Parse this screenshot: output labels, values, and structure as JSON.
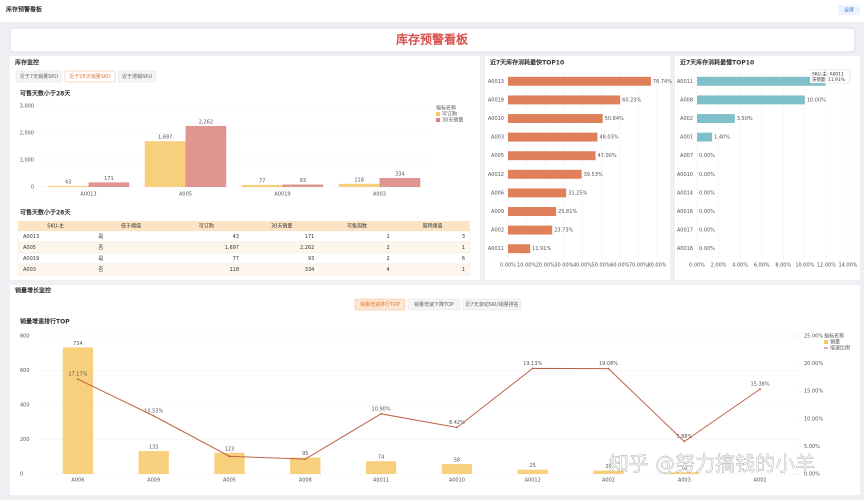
{
  "header": {
    "title": "库存预警看板",
    "button": "全屏"
  },
  "banner": {
    "title": "库存预警看板"
  },
  "inventory_panel": {
    "title": "库存监控",
    "tabs": [
      "近于7天销量SKU",
      "近于28天销量SKU",
      "近于滞销SKU"
    ],
    "active_tab": 1,
    "table_title": "可售天数小于28天",
    "table": {
      "columns": [
        "SKU-主",
        "低于阈值",
        "可订购",
        "30天销量",
        "可售周数",
        "周转阈值"
      ],
      "rows": [
        [
          "A0013",
          "是",
          "43",
          "171",
          "1",
          "3"
        ],
        [
          "A005",
          "否",
          "1,697",
          "2,262",
          "2",
          "1"
        ],
        [
          "A0019",
          "是",
          "77",
          "93",
          "2",
          "6"
        ],
        [
          "A003",
          "否",
          "118",
          "334",
          "4",
          "1"
        ]
      ]
    }
  },
  "growth_panel": {
    "title": "销量增长监控",
    "tabs": [
      "销量增速排行TOP",
      "销量增速下降TOP",
      "近7天滚动SKU销量排名"
    ],
    "active_tab": 0
  },
  "watermark": "知乎 @努力搞钱的小羊",
  "chart_data": [
    {
      "type": "bar",
      "subtitle": "可售天数小于28天",
      "categories": [
        "A0013",
        "A005",
        "A0019",
        "A003"
      ],
      "series": [
        {
          "name": "可订购",
          "color": "#f6c766",
          "values": [
            43,
            1697,
            77,
            118
          ],
          "value_labels": [
            "43",
            "1,697",
            "77",
            "118"
          ]
        },
        {
          "name": "30天销量",
          "color": "#d9827c",
          "values": [
            171,
            2262,
            93,
            334
          ],
          "value_labels": [
            "171",
            "2,262",
            "93",
            "334"
          ]
        }
      ],
      "ylim": [
        0,
        3000
      ],
      "yticks": [
        0,
        {
          "value": 1000,
          "label": "1,000"
        },
        {
          "value": 2000,
          "label": "2,000"
        },
        {
          "value": 3000,
          "label": "3,000"
        }
      ],
      "grid": true,
      "legend_title": "指标名称",
      "legend": "right"
    },
    {
      "type": "hbar",
      "title": "近7天库存消耗最快TOP10",
      "color": "#e0805a",
      "categories": [
        "A0013",
        "A0019",
        "A0010",
        "A003",
        "A005",
        "A0012",
        "A006",
        "A009",
        "A002",
        "A0011"
      ],
      "values": [
        76.74,
        60.23,
        50.84,
        48.03,
        47.0,
        39.53,
        31.25,
        25.81,
        23.73,
        11.91
      ],
      "value_labels": [
        "76.74%",
        "60.23%",
        "50.84%",
        "48.03%",
        "47.00%",
        "39.53%",
        "31.25%",
        "25.81%",
        "23.73%",
        "11.91%"
      ],
      "xlim": [
        0,
        80
      ],
      "xticks": [
        {
          "value": 0,
          "label": "0.00%"
        },
        {
          "value": 10,
          "label": "10.00%"
        },
        {
          "value": 20,
          "label": "20.00%"
        },
        {
          "value": 30,
          "label": "30.00%"
        },
        {
          "value": 40,
          "label": "40.00%"
        },
        {
          "value": 50,
          "label": "50.00%"
        },
        {
          "value": 60,
          "label": "60.00%"
        },
        {
          "value": 70,
          "label": "70.00%"
        },
        {
          "value": 80,
          "label": "80.00%"
        }
      ]
    },
    {
      "type": "hbar",
      "title": "近7天库存消耗最慢TOP10",
      "color": "#7fbfca",
      "categories": [
        "A0011",
        "A008",
        "A002",
        "A001",
        "A007",
        "A0010",
        "A0014",
        "A0016",
        "A0017",
        "A0018"
      ],
      "values": [
        11.91,
        10.0,
        3.5,
        1.4,
        0,
        0,
        0,
        0,
        0,
        0
      ],
      "value_labels": [
        "11.91%",
        "10.00%",
        "3.50%",
        "1.40%",
        "0.00%",
        "0.00%",
        "0.00%",
        "0.00%",
        "0.00%",
        "0.00%"
      ],
      "xlim": [
        0,
        14
      ],
      "xticks": [
        {
          "value": 0,
          "label": "0.00%"
        },
        {
          "value": 2,
          "label": "2.00%"
        },
        {
          "value": 4,
          "label": "4.00%"
        },
        {
          "value": 6,
          "label": "6.00%"
        },
        {
          "value": 8,
          "label": "8.00%"
        },
        {
          "value": 10,
          "label": "10.00%"
        },
        {
          "value": 12,
          "label": "12.00%"
        },
        {
          "value": 14,
          "label": "14.00%"
        }
      ],
      "tooltip": [
        "SKU-主: A0011",
        "滞销量: 11.91%"
      ]
    },
    {
      "type": "combo",
      "subtitle": "销量增速排行TOP",
      "categories": [
        "A006",
        "A009",
        "A005",
        "A008",
        "A0011",
        "A0010",
        "A0012",
        "A002",
        "A003",
        "A001"
      ],
      "series": [
        {
          "name": "销量",
          "type": "bar",
          "color": "#f6c766",
          "values": [
            734,
            133,
            123,
            95,
            74,
            58,
            25,
            20,
            10,
            null
          ]
        },
        {
          "name": "增速比例",
          "type": "line",
          "axis": "y2",
          "color": "#c0614a",
          "values": [
            17.17,
            10.53,
            3.2,
            2.7,
            10.9,
            8.42,
            19.13,
            19.08,
            5.88,
            15.38
          ],
          "value_labels": [
            "17.17%",
            "10.53%",
            null,
            null,
            "10.90%",
            "8.42%",
            "19.13%",
            "19.08%",
            "5.88%",
            "15.38%"
          ]
        }
      ],
      "ylim": [
        0,
        800
      ],
      "yticks": [
        0,
        200,
        400,
        600,
        800
      ],
      "y2lim": [
        0,
        25
      ],
      "y2ticks": [
        {
          "value": 0,
          "label": "0.00%"
        },
        {
          "value": 5,
          "label": "5.00%"
        },
        {
          "value": 10,
          "label": "10.00%"
        },
        {
          "value": 15,
          "label": "15.00%"
        },
        {
          "value": 20,
          "label": "20.00%"
        },
        {
          "value": 25,
          "label": "25.00%"
        }
      ],
      "grid": true,
      "legend_title": "指标名称",
      "legend": "right"
    }
  ]
}
